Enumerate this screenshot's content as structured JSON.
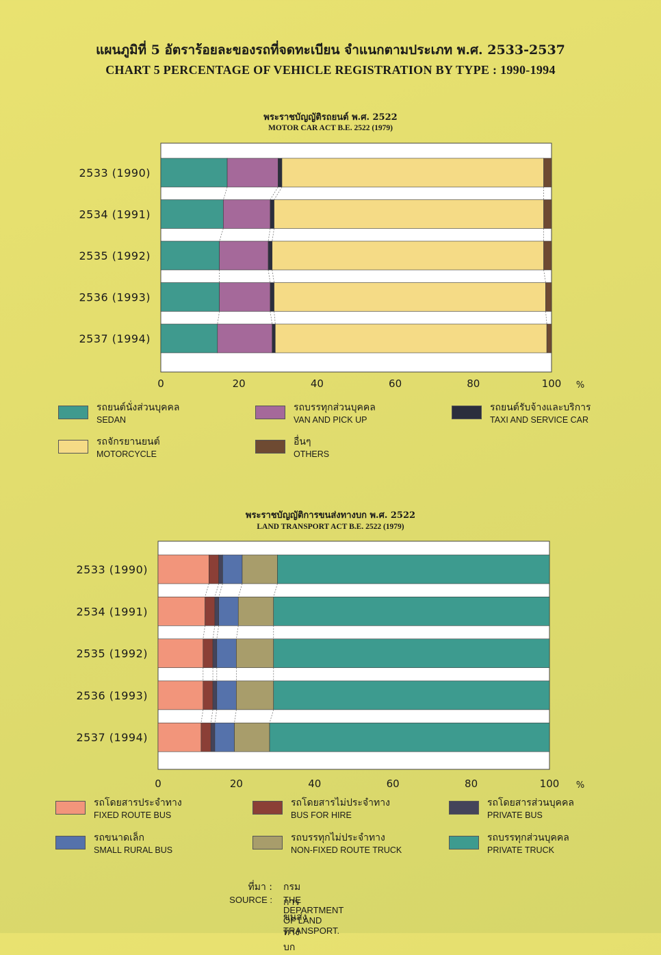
{
  "title_th": "แผนภูมิที่  5  อัตราร้อยละของรถที่จดทะเบียน  จำแนกตามประเภท  พ.ศ.  2533-2537",
  "title_en": "CHART  5  PERCENTAGE OF VEHICLE REGISTRATION BY TYPE : 1990-1994",
  "source_label_th": "ที่มา  :",
  "source_value_th": "กรมการขนส่งทางบก",
  "source_label_en": "SOURCE  :",
  "source_value_en": "THE DEPARTMENT OF LAND TRANSPORT.",
  "chart_data": [
    {
      "type": "bar",
      "orientation": "horizontal",
      "stacked": true,
      "title": "พระราชบัญญัติรถยนต์ พ.ศ. 2522",
      "subtitle": "MOTOR CAR ACT B.E. 2522 (1979)",
      "categories": [
        "2533 (1990)",
        "2534 (1991)",
        "2535 (1992)",
        "2536 (1993)",
        "2537 (1994)"
      ],
      "xlim": [
        0,
        100
      ],
      "xticks": [
        "0",
        "20",
        "40",
        "60",
        "80",
        "100"
      ],
      "xunit": "%",
      "legend_placement": "bottom",
      "series": [
        {
          "name_th": "รถยนต์นั่งส่วนบุคคล",
          "name": "SEDAN",
          "color": "#3f9a8e",
          "values": [
            17,
            16,
            15,
            15,
            14.5
          ]
        },
        {
          "name_th": "รถบรรทุกส่วนบุคคล",
          "name": "VAN AND PICK UP",
          "color": "#a5699a",
          "values": [
            13,
            12,
            12.5,
            13,
            14
          ]
        },
        {
          "name_th": "รถยนต์รับจ้างและบริการ",
          "name": "TAXI AND SERVICE CAR",
          "color": "#2b2e3d",
          "values": [
            1,
            1,
            1,
            1,
            0.8
          ]
        },
        {
          "name_th": "รถจักรยานยนต์",
          "name": "MOTORCYCLE",
          "color": "#f5db86",
          "values": [
            67,
            69,
            69.5,
            69.5,
            69.5
          ]
        },
        {
          "name_th": "อื่นๆ",
          "name": "OTHERS",
          "color": "#6e4a32",
          "values": [
            2,
            2,
            2,
            1.5,
            1.2
          ]
        }
      ]
    },
    {
      "type": "bar",
      "orientation": "horizontal",
      "stacked": true,
      "title": "พระราชบัญญัติการขนส่งทางบก พ.ศ. 2522",
      "subtitle": "LAND TRANSPORT ACT B.E. 2522 (1979)",
      "categories": [
        "2533 (1990)",
        "2534 (1991)",
        "2535 (1992)",
        "2536 (1993)",
        "2537 (1994)"
      ],
      "xlim": [
        0,
        100
      ],
      "xticks": [
        "0",
        "20",
        "40",
        "60",
        "80",
        "100"
      ],
      "xunit": "%",
      "legend_placement": "bottom",
      "series": [
        {
          "name_th": "รถโดยสารประจำทาง",
          "name": "FIXED ROUTE BUS",
          "color": "#f2957b",
          "values": [
            13,
            12,
            11.5,
            11.5,
            11
          ]
        },
        {
          "name_th": "รถโดยสารไม่ประจำทาง",
          "name": "BUS FOR HIRE",
          "color": "#8b3f36",
          "values": [
            2.5,
            2.5,
            2.5,
            2.5,
            2.5
          ]
        },
        {
          "name_th": "รถโดยสารส่วนบุคคล",
          "name": "PRIVATE BUS",
          "color": "#44445a",
          "values": [
            1,
            1,
            1,
            1,
            1
          ]
        },
        {
          "name_th": "รถขนาดเล็ก",
          "name": "SMALL RURAL BUS",
          "color": "#5572ab",
          "values": [
            5,
            5,
            5,
            5,
            5
          ]
        },
        {
          "name_th": "รถบรรทุกไม่ประจำทาง",
          "name": "NON-FIXED ROUTE TRUCK",
          "color": "#a89d6b",
          "values": [
            9,
            9,
            9.5,
            9.5,
            9
          ]
        },
        {
          "name_th": "รถบรรทุกส่วนบุคคล",
          "name": "PRIVATE TRUCK",
          "color": "#3d9b8f",
          "values": [
            69.5,
            70.5,
            70.5,
            70.5,
            71.5
          ]
        }
      ]
    }
  ]
}
